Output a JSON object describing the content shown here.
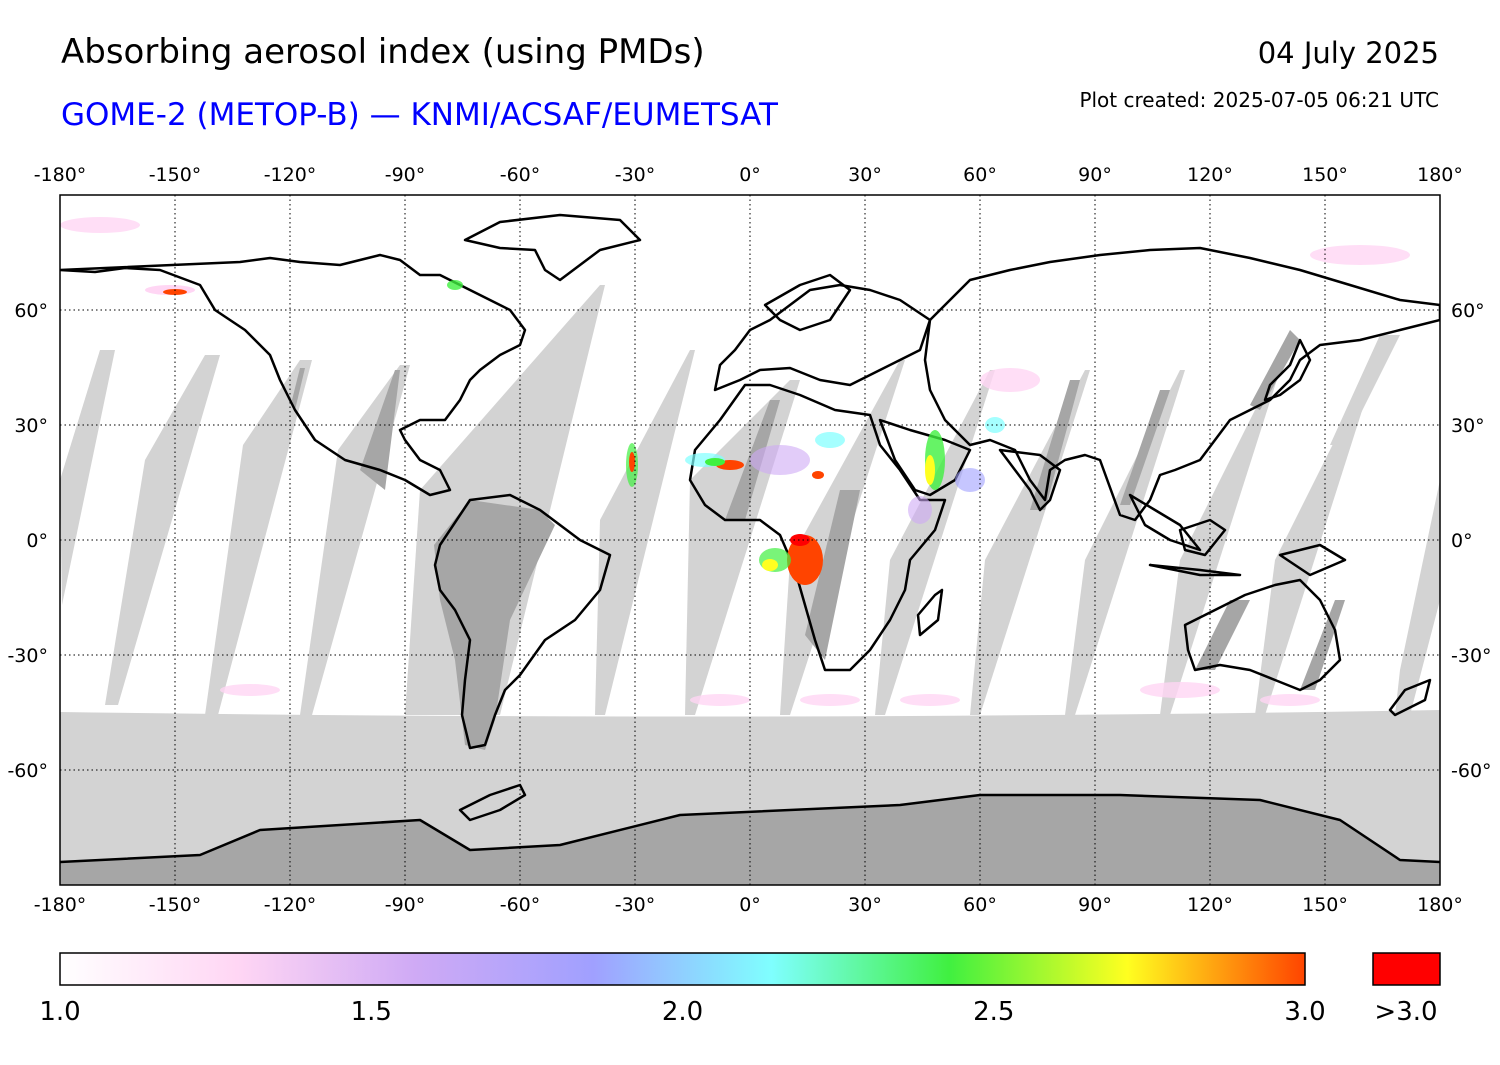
{
  "header": {
    "title": "Absorbing aerosol index (using PMDs)",
    "subtitle": "GOME-2 (METOP-B) — KNMI/ACSAF/EUMETSAT",
    "date": "04 July 2025",
    "plot_created": "Plot created: 2025-07-05 06:21 UTC"
  },
  "map": {
    "projection": "equirectangular",
    "lon_range": [
      -180,
      180
    ],
    "lat_range": [
      -90,
      90
    ],
    "gridlines": "dotted",
    "lon_ticks": [
      {
        "value": -180,
        "label": "-180°"
      },
      {
        "value": -150,
        "label": "-150°"
      },
      {
        "value": -120,
        "label": "-120°"
      },
      {
        "value": -90,
        "label": "-90°"
      },
      {
        "value": -60,
        "label": "-60°"
      },
      {
        "value": -30,
        "label": "-30°"
      },
      {
        "value": 0,
        "label": "0°"
      },
      {
        "value": 30,
        "label": "30°"
      },
      {
        "value": 60,
        "label": "60°"
      },
      {
        "value": 90,
        "label": "90°"
      },
      {
        "value": 120,
        "label": "120°"
      },
      {
        "value": 150,
        "label": "150°"
      },
      {
        "value": 180,
        "label": "180°"
      }
    ],
    "lat_ticks": [
      {
        "value": 60,
        "label": "60°"
      },
      {
        "value": 30,
        "label": "30°"
      },
      {
        "value": 0,
        "label": "0°"
      },
      {
        "value": -30,
        "label": "-30°"
      },
      {
        "value": -60,
        "label": "-60°"
      }
    ],
    "colors": {
      "no_data_ocean": "#d3d3d3",
      "no_data_land": "#a6a6a6",
      "coastline": "#000000"
    },
    "aerosol_plumes": [
      {
        "name": "central-africa-biomass",
        "lon": 15,
        "lat": -3,
        "aai": ">3.0"
      },
      {
        "name": "sahara-west",
        "lon": -5,
        "lat": 20,
        "aai": ">3.0"
      },
      {
        "name": "arabia",
        "lon": 48,
        "lat": 18,
        "aai": 2.5
      },
      {
        "name": "canada-fires",
        "lon": -140,
        "lat": 63,
        "aai": ">3.0"
      },
      {
        "name": "atlantic-dust",
        "lon": -28,
        "lat": 22,
        "aai": 2.8
      }
    ]
  },
  "colorbar": {
    "min": 1.0,
    "max": 3.0,
    "tick_labels": [
      "1.0",
      "1.5",
      "2.0",
      "2.5",
      "3.0"
    ],
    "over_label": ">3.0",
    "over_color": "#ff0000",
    "stops": [
      "#ffffff",
      "#ffd6f4",
      "#cfaaf5",
      "#a0a0ff",
      "#7fffff",
      "#40f040",
      "#ffff20",
      "#ff4400"
    ]
  }
}
